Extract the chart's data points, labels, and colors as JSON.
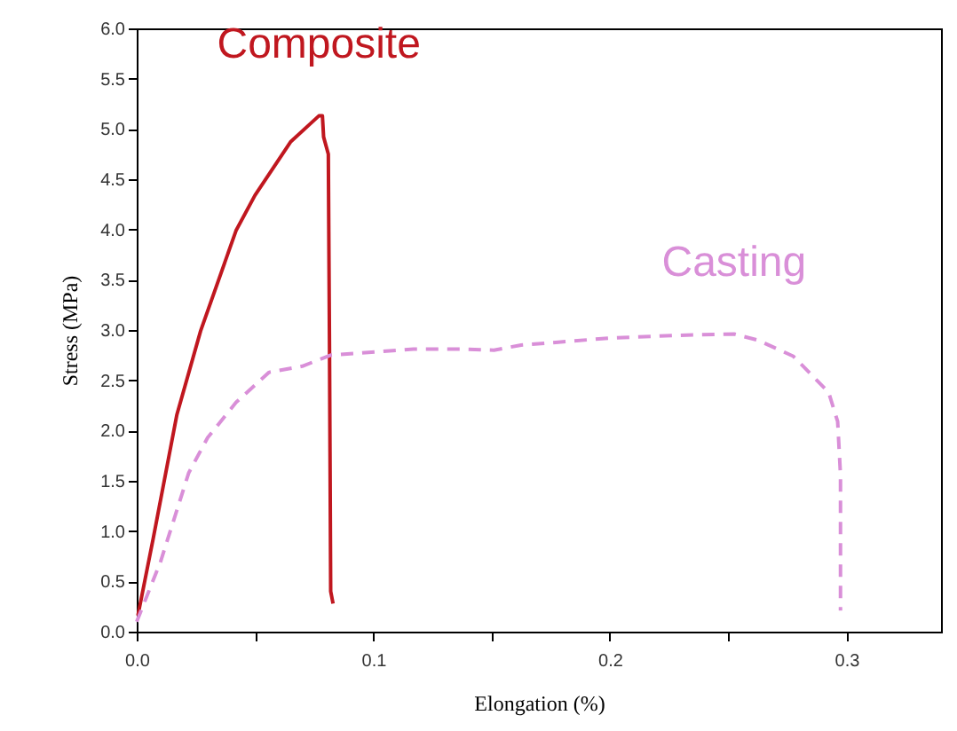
{
  "chart_data": {
    "type": "line",
    "xlabel": "Elongation (%)",
    "ylabel": "Stress (MPa)",
    "xlim": [
      0,
      0.34
    ],
    "ylim": [
      0,
      6
    ],
    "xticks": [
      {
        "value": 0,
        "label": "0.0"
      },
      {
        "value": 0.05,
        "label": null
      },
      0.1,
      {
        "value": 0.15,
        "label": null
      },
      0.2,
      {
        "value": 0.25,
        "label": null
      },
      0.3
    ],
    "yticks": [
      {
        "value": 0,
        "label": "0.0"
      },
      0.5,
      {
        "value": 1,
        "label": "1.0"
      },
      1.5,
      {
        "value": 2,
        "label": "2.0"
      },
      2.5,
      {
        "value": 3,
        "label": "3.0"
      },
      3.5,
      {
        "value": 4,
        "label": "4.0"
      },
      4.5,
      {
        "value": 5,
        "label": "5.0"
      },
      5.5,
      {
        "value": 6,
        "label": "6.0"
      }
    ],
    "grid": false,
    "series": [
      {
        "name": "Composite",
        "color": "#c0171f",
        "line_style": "solid",
        "x": [
          0.0005,
          0.007,
          0.017,
          0.027,
          0.042,
          0.05,
          0.065,
          0.077,
          0.0785,
          0.079,
          0.081,
          0.0815,
          0.082,
          0.083
        ],
        "values": [
          0.16,
          0.93,
          2.16,
          2.99,
          3.99,
          4.34,
          4.87,
          5.13,
          5.13,
          4.92,
          4.75,
          2.81,
          0.4,
          0.28
        ]
      },
      {
        "name": "Casting",
        "color": "#d98fd8",
        "line_style": "dashed",
        "x": [
          0,
          0.01,
          0.022,
          0.03,
          0.042,
          0.056,
          0.07,
          0.082,
          0.117,
          0.1375,
          0.151,
          0.1625,
          0.2,
          0.2325,
          0.2525,
          0.2625,
          0.2775,
          0.2925,
          0.2963,
          0.2975,
          0.2975
        ],
        "values": [
          0.1,
          0.69,
          1.58,
          1.93,
          2.28,
          2.58,
          2.64,
          2.75,
          2.81,
          2.81,
          2.8,
          2.85,
          2.92,
          2.95,
          2.96,
          2.9,
          2.74,
          2.38,
          2.09,
          1.56,
          0.21
        ]
      }
    ]
  }
}
